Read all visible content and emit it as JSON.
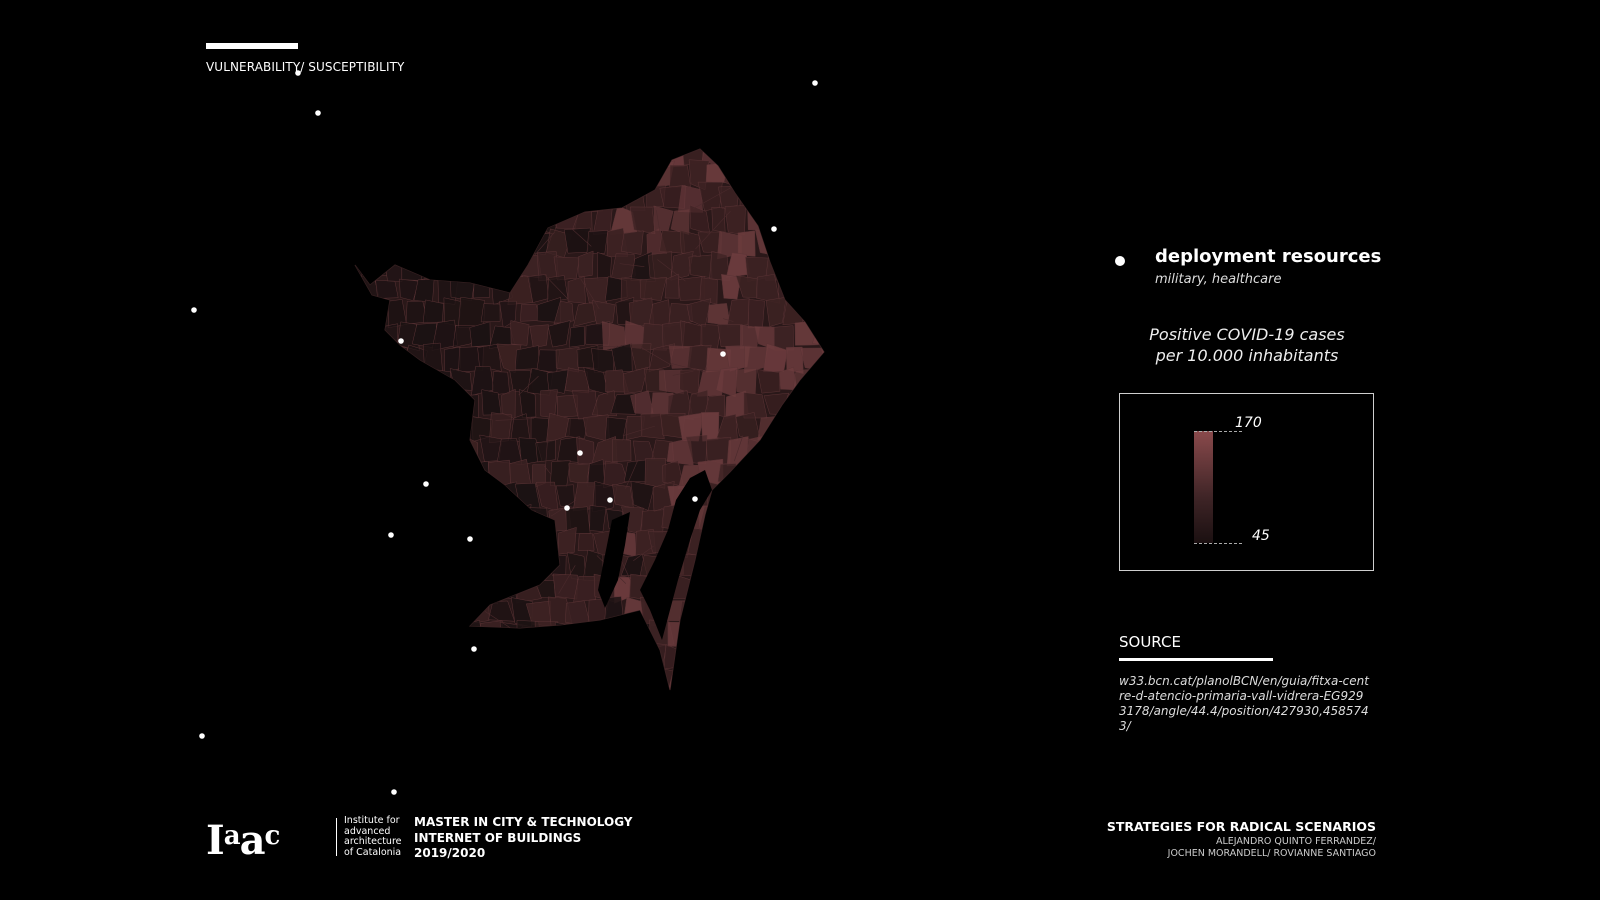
{
  "header": {
    "section_label": "VULNERABILITY/ SUSCEPTIBILITY"
  },
  "legend": {
    "marker_label": "deployment resources",
    "marker_sublabel": "military, healthcare",
    "metric_title_line1": "Positive COVID-19 cases",
    "metric_title_line2": "per 10.000 inhabitants",
    "scale": {
      "max": "170",
      "min": "45",
      "color_high": "#8a4a4c",
      "color_low": "#1b1011"
    }
  },
  "source": {
    "label": "SOURCE",
    "url": "w33.bcn.cat/planolBCN/en/guia/fitxa-centre-d-atencio-primaria-vall-vidrera-EG9293178/angle/44.4/position/427930,4585743/"
  },
  "institution": {
    "logo_text": "Iaac",
    "name_line1": "Institute for",
    "name_line2": "advanced",
    "name_line3": "architecture",
    "name_line4": "of Catalonia",
    "program_line1": "MASTER IN CITY & TECHNOLOGY",
    "program_line2": "INTERNET OF BUILDINGS",
    "program_line3": "2019/2020"
  },
  "project": {
    "title": "STRATEGIES FOR RADICAL SCENARIOS",
    "authors_line1": "ALEJANDRO QUINTO FERRANDEZ/",
    "authors_line2": "JOCHEN MORANDELL/ ROVIANNE SANTIAGO"
  },
  "map": {
    "fill_high": "#6b3b3d",
    "fill_mid": "#3d2223",
    "fill_low": "#1c1213",
    "stroke": "#5a3335",
    "marker_color": "#ffffff"
  }
}
